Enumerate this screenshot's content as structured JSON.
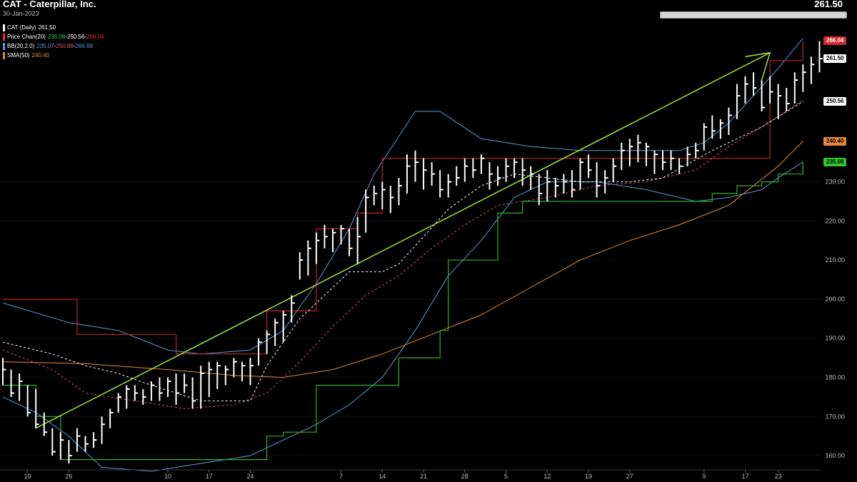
{
  "header": {
    "title": "CAT - Caterpillar, Inc.",
    "date": "30-Jan-2023",
    "last_price": "261.50"
  },
  "legend": [
    {
      "label": "CAT (Daily)",
      "values": [
        "261.50"
      ],
      "value_colors": [
        "#ffffff"
      ],
      "color": "#ffffff"
    },
    {
      "label": "Price Chan(20)",
      "values": [
        "235.08",
        "250.56",
        "266.04"
      ],
      "value_colors": [
        "#3ad13a",
        "#ffffff",
        "#e8312a"
      ],
      "color": "#e8312a"
    },
    {
      "label": "BB(20,2.0)",
      "values": [
        "235.07",
        "250.88",
        "266.69"
      ],
      "value_colors": [
        "#5b9bd5",
        "#e0566e",
        "#5b9bd5"
      ],
      "color": "#5b9bd5"
    },
    {
      "label": "SMA(50)",
      "values": [
        "240.40"
      ],
      "value_colors": [
        "#e8883a"
      ],
      "color": "#e8883a"
    }
  ],
  "price_tags": [
    {
      "text": "266.04",
      "value": 266.04,
      "bg": "#d42a2a",
      "fg": "#ffffff"
    },
    {
      "text": "261.50",
      "value": 261.5,
      "bg": "#ffffff",
      "fg": "#000000"
    },
    {
      "text": "250.56",
      "value": 250.56,
      "bg": "#ffffff",
      "fg": "#000000"
    },
    {
      "text": "240.40",
      "value": 240.4,
      "bg": "#e8883a",
      "fg": "#000000"
    },
    {
      "text": "235.08",
      "value": 235.08,
      "bg": "#2ec82e",
      "fg": "#000000"
    }
  ],
  "colors": {
    "background": "#000000",
    "price_bars": "#ffffff",
    "channel_upper": "#c0262a",
    "channel_lower": "#29b629",
    "channel_mid": "#ffffff",
    "bb_outer": "#5b9bd5",
    "bb_mid": "#d4506a",
    "sma": "#e8883a",
    "trendline": "#9ad63a"
  },
  "chart_data": {
    "type": "line",
    "ylim": [
      156,
      271
    ],
    "y_ticks": [
      160,
      170,
      180,
      190,
      200,
      210,
      220,
      230
    ],
    "x_ticks": [
      {
        "i": 3,
        "label": "19"
      },
      {
        "i": 8,
        "label": "26"
      },
      {
        "i": 20,
        "label": "10"
      },
      {
        "i": 25,
        "label": "17"
      },
      {
        "i": 30,
        "label": "24"
      },
      {
        "i": 41,
        "label": "7"
      },
      {
        "i": 46,
        "label": "14"
      },
      {
        "i": 51,
        "label": "21"
      },
      {
        "i": 56,
        "label": "28"
      },
      {
        "i": 61,
        "label": "5"
      },
      {
        "i": 66,
        "label": "12"
      },
      {
        "i": 71,
        "label": "19"
      },
      {
        "i": 76,
        "label": "27"
      },
      {
        "i": 85,
        "label": "9"
      },
      {
        "i": 90,
        "label": "17"
      },
      {
        "i": 94,
        "label": "23"
      }
    ],
    "ohlc": [
      [
        185,
        178,
        182
      ],
      [
        182,
        175,
        176
      ],
      [
        181,
        174,
        179
      ],
      [
        178,
        170,
        171
      ],
      [
        177,
        167,
        168
      ],
      [
        171,
        165,
        166
      ],
      [
        167,
        160,
        161
      ],
      [
        166,
        159,
        164
      ],
      [
        164,
        158,
        160
      ],
      [
        167,
        161,
        165
      ],
      [
        165,
        161,
        163
      ],
      [
        166,
        162,
        164
      ],
      [
        170,
        163,
        168
      ],
      [
        172,
        167,
        171
      ],
      [
        176,
        171,
        175
      ],
      [
        178,
        172,
        177
      ],
      [
        178,
        174,
        176
      ],
      [
        177,
        173,
        175
      ],
      [
        179,
        174,
        178
      ],
      [
        180,
        174,
        176
      ],
      [
        180,
        175,
        179
      ],
      [
        181,
        173,
        176
      ],
      [
        181,
        176,
        178
      ],
      [
        180,
        172,
        174
      ],
      [
        183,
        172,
        181
      ],
      [
        184,
        175,
        182
      ],
      [
        184,
        177,
        183
      ],
      [
        183,
        178,
        182
      ],
      [
        185,
        180,
        184
      ],
      [
        184,
        179,
        183
      ],
      [
        185,
        178,
        183
      ],
      [
        190,
        183,
        189
      ],
      [
        192,
        186,
        191
      ],
      [
        195,
        188,
        194
      ],
      [
        197,
        189,
        196
      ],
      [
        201,
        194,
        199
      ],
      [
        212,
        205,
        210
      ],
      [
        215,
        206,
        213
      ],
      [
        217,
        209,
        215
      ],
      [
        219,
        213,
        216
      ],
      [
        218,
        212,
        217
      ],
      [
        219,
        214,
        218
      ],
      [
        218,
        211,
        213
      ],
      [
        221,
        209,
        216
      ],
      [
        228,
        217,
        226
      ],
      [
        229,
        224,
        227
      ],
      [
        230,
        223,
        228
      ],
      [
        229,
        222,
        226
      ],
      [
        231,
        224,
        229
      ],
      [
        237,
        227,
        234
      ],
      [
        238,
        230,
        235
      ],
      [
        236,
        228,
        233
      ],
      [
        235,
        229,
        232
      ],
      [
        233,
        226,
        228
      ],
      [
        232,
        226,
        230
      ],
      [
        234,
        229,
        231
      ],
      [
        236,
        230,
        234
      ],
      [
        236,
        231,
        233
      ],
      [
        237,
        232,
        236
      ],
      [
        235,
        228,
        232
      ],
      [
        234,
        229,
        231
      ],
      [
        236,
        230,
        234
      ],
      [
        236,
        231,
        235
      ],
      [
        236,
        229,
        233
      ],
      [
        234,
        228,
        232
      ],
      [
        232,
        224,
        227
      ],
      [
        233,
        225,
        230
      ],
      [
        231,
        226,
        229
      ],
      [
        232,
        227,
        230
      ],
      [
        233,
        226,
        228
      ],
      [
        236,
        228,
        235
      ],
      [
        237,
        231,
        233
      ],
      [
        235,
        226,
        229
      ],
      [
        233,
        227,
        231
      ],
      [
        236,
        230,
        234
      ],
      [
        240,
        233,
        238
      ],
      [
        241,
        234,
        239
      ],
      [
        242,
        235,
        240
      ],
      [
        240,
        234,
        239
      ],
      [
        238,
        232,
        237
      ],
      [
        238,
        233,
        235
      ],
      [
        238,
        233,
        236
      ],
      [
        236,
        232,
        234
      ],
      [
        239,
        234,
        237
      ],
      [
        240,
        236,
        238
      ],
      [
        245,
        238,
        244
      ],
      [
        247,
        241,
        243
      ],
      [
        246,
        241,
        245
      ],
      [
        249,
        242,
        247
      ],
      [
        255,
        246,
        252
      ],
      [
        257,
        250,
        255
      ],
      [
        258,
        252,
        254
      ],
      [
        256,
        248,
        249
      ],
      [
        257,
        250,
        253
      ],
      [
        255,
        246,
        252
      ],
      [
        254,
        248,
        250
      ],
      [
        258,
        250,
        256
      ],
      [
        260,
        253,
        258
      ],
      [
        262,
        255,
        260
      ],
      [
        266,
        258,
        261.5
      ]
    ],
    "price_channel_upper": [
      [
        0,
        200
      ],
      [
        8,
        200
      ],
      [
        9,
        191
      ],
      [
        18,
        191
      ],
      [
        21,
        186
      ],
      [
        28,
        186
      ],
      [
        32,
        197
      ],
      [
        38,
        218
      ],
      [
        43,
        222
      ],
      [
        46,
        236
      ],
      [
        92,
        236
      ],
      [
        93,
        261
      ],
      [
        97,
        266
      ]
    ],
    "price_channel_lower": [
      [
        0,
        178
      ],
      [
        4,
        170
      ],
      [
        7,
        159
      ],
      [
        30,
        159
      ],
      [
        32,
        165
      ],
      [
        34,
        166
      ],
      [
        38,
        178
      ],
      [
        45,
        178
      ],
      [
        48,
        185
      ],
      [
        53,
        192
      ],
      [
        54,
        210
      ],
      [
        58,
        210
      ],
      [
        60,
        222
      ],
      [
        63,
        225
      ],
      [
        84,
        225
      ],
      [
        86,
        227
      ],
      [
        89,
        229
      ],
      [
        92,
        230
      ],
      [
        94,
        232
      ],
      [
        97,
        235
      ]
    ],
    "price_channel_mid": [
      [
        0,
        189
      ],
      [
        6,
        186
      ],
      [
        10,
        183
      ],
      [
        14,
        181
      ],
      [
        18,
        178
      ],
      [
        24,
        174
      ],
      [
        30,
        174
      ],
      [
        32,
        183
      ],
      [
        36,
        195
      ],
      [
        42,
        207
      ],
      [
        46,
        207
      ],
      [
        48,
        209
      ],
      [
        51,
        216
      ],
      [
        54,
        223
      ],
      [
        58,
        229
      ],
      [
        62,
        232
      ],
      [
        70,
        230
      ],
      [
        76,
        230
      ],
      [
        80,
        231
      ],
      [
        86,
        238
      ],
      [
        92,
        244
      ],
      [
        97,
        250.56
      ]
    ],
    "bb_upper": [
      [
        0,
        199
      ],
      [
        8,
        194
      ],
      [
        14,
        192
      ],
      [
        20,
        187
      ],
      [
        24,
        186
      ],
      [
        30,
        187
      ],
      [
        34,
        192
      ],
      [
        38,
        204
      ],
      [
        42,
        218
      ],
      [
        45,
        232
      ],
      [
        50,
        248
      ],
      [
        53,
        248
      ],
      [
        58,
        241
      ],
      [
        64,
        239
      ],
      [
        70,
        238
      ],
      [
        76,
        238
      ],
      [
        82,
        238
      ],
      [
        85,
        240
      ],
      [
        88,
        245
      ],
      [
        91,
        252
      ],
      [
        94,
        259
      ],
      [
        97,
        266.69
      ]
    ],
    "bb_lower": [
      [
        0,
        175
      ],
      [
        4,
        171
      ],
      [
        8,
        165
      ],
      [
        12,
        157
      ],
      [
        18,
        156
      ],
      [
        24,
        158
      ],
      [
        30,
        160
      ],
      [
        34,
        164
      ],
      [
        38,
        168
      ],
      [
        42,
        173
      ],
      [
        46,
        180
      ],
      [
        50,
        192
      ],
      [
        54,
        206
      ],
      [
        58,
        215
      ],
      [
        62,
        226
      ],
      [
        66,
        230
      ],
      [
        72,
        230
      ],
      [
        78,
        228
      ],
      [
        84,
        225
      ],
      [
        88,
        226
      ],
      [
        92,
        228
      ],
      [
        94,
        231
      ],
      [
        97,
        235.07
      ]
    ],
    "bb_mid": [
      [
        0,
        187
      ],
      [
        6,
        182
      ],
      [
        10,
        176
      ],
      [
        16,
        174
      ],
      [
        22,
        172
      ],
      [
        28,
        173
      ],
      [
        32,
        176
      ],
      [
        36,
        184
      ],
      [
        40,
        193
      ],
      [
        44,
        201
      ],
      [
        48,
        206
      ],
      [
        52,
        213
      ],
      [
        56,
        219
      ],
      [
        60,
        224
      ],
      [
        66,
        226
      ],
      [
        72,
        229
      ],
      [
        78,
        230
      ],
      [
        84,
        233
      ],
      [
        88,
        239
      ],
      [
        92,
        244
      ],
      [
        97,
        250.88
      ]
    ],
    "sma_50": [
      [
        0,
        184
      ],
      [
        10,
        183.5
      ],
      [
        20,
        182
      ],
      [
        28,
        180.5
      ],
      [
        34,
        180
      ],
      [
        40,
        182
      ],
      [
        46,
        186
      ],
      [
        52,
        191
      ],
      [
        58,
        196
      ],
      [
        64,
        203
      ],
      [
        70,
        210
      ],
      [
        76,
        215
      ],
      [
        82,
        219
      ],
      [
        88,
        224
      ],
      [
        94,
        234
      ],
      [
        97,
        240.4
      ]
    ],
    "trendline": [
      [
        4,
        167
      ],
      [
        93,
        263
      ]
    ],
    "trendline_hook": [
      [
        90,
        262
      ],
      [
        93,
        263
      ],
      [
        92,
        256
      ]
    ]
  }
}
